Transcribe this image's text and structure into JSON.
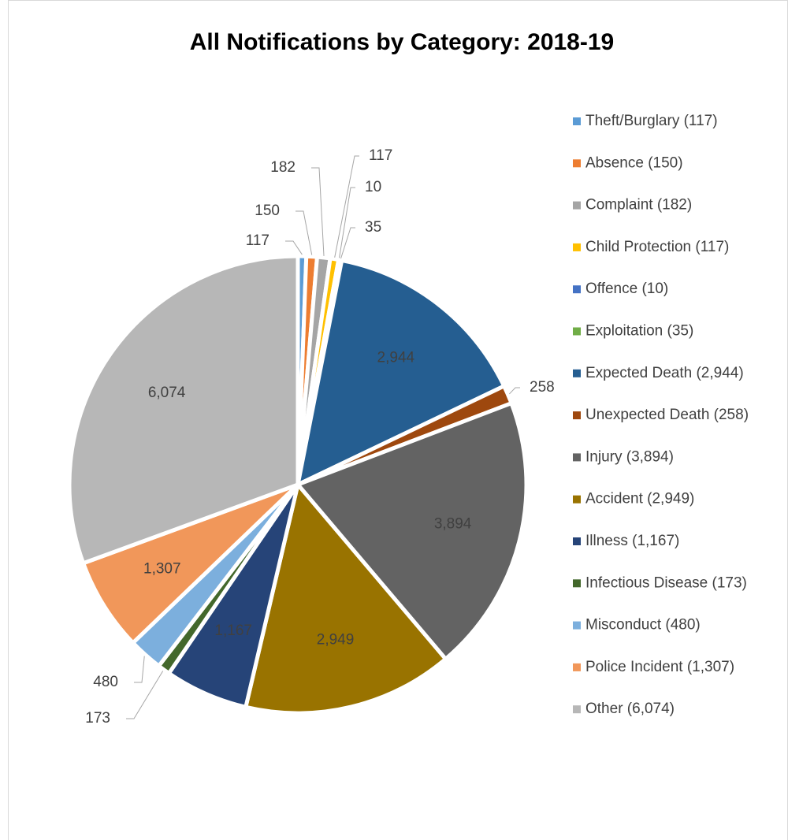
{
  "chart_data": {
    "type": "pie",
    "title": "All Notifications by Category: 2018-19",
    "categories": [
      "Theft/Burglary (117)",
      "Absence (150)",
      "Complaint (182)",
      "Child Protection (117)",
      "Offence (10)",
      "Exploitation (35)",
      "Expected Death (2,944)",
      "Unexpected Death (258)",
      "Injury (3,894)",
      "Accident (2,949)",
      "Illness (1,167)",
      "Infectious Disease (173)",
      "Misconduct (480)",
      "Police Incident (1,307)",
      "Other (6,074)"
    ],
    "values": [
      117,
      150,
      182,
      117,
      10,
      35,
      2944,
      258,
      3894,
      2949,
      1167,
      173,
      480,
      1307,
      6074
    ],
    "value_labels": [
      "117",
      "150",
      "182",
      "117",
      "10",
      "35",
      "2,944",
      "258",
      "3,894",
      "2,949",
      "1,167",
      "173",
      "480",
      "1,307",
      "6,074"
    ],
    "colors": [
      "#5b9bd5",
      "#ed7d31",
      "#a5a5a5",
      "#ffc000",
      "#4472c4",
      "#70ad47",
      "#255e91",
      "#9e480e",
      "#636363",
      "#997300",
      "#264478",
      "#43682b",
      "#7cafdd",
      "#f1975a",
      "#b7b7b7"
    ],
    "legend": "right"
  }
}
